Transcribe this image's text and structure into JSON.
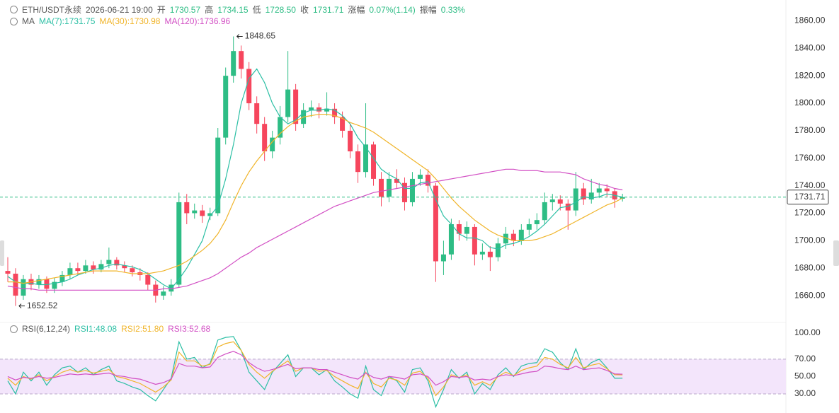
{
  "header": {
    "symbol": "ETH/USDT永续",
    "time": "2026-06-21 19:00",
    "fields": [
      {
        "label": "开",
        "value": "1730.57"
      },
      {
        "label": "高",
        "value": "1734.15"
      },
      {
        "label": "低",
        "value": "1728.50"
      },
      {
        "label": "收",
        "value": "1731.71"
      },
      {
        "label": "涨幅",
        "value": "0.07%(1.14)"
      },
      {
        "label": "振幅",
        "value": "0.33%"
      }
    ]
  },
  "chart_data": [
    {
      "type": "candlestick",
      "indicator": "MA",
      "up_color": "#2ebd85",
      "down_color": "#f6465d",
      "last_price_line": true,
      "candles": [
        [
          1678,
          1688,
          1670,
          1676
        ],
        [
          1676,
          1680,
          1652.52,
          1660
        ],
        [
          1660,
          1675,
          1657,
          1672
        ],
        [
          1672,
          1676,
          1664,
          1668
        ],
        [
          1668,
          1675,
          1665,
          1672
        ],
        [
          1672,
          1674,
          1662,
          1665
        ],
        [
          1665,
          1673,
          1662,
          1670
        ],
        [
          1670,
          1678,
          1667,
          1675
        ],
        [
          1675,
          1684,
          1672,
          1680
        ],
        [
          1680,
          1684,
          1675,
          1678
        ],
        [
          1678,
          1686,
          1676,
          1682
        ],
        [
          1682,
          1685,
          1676,
          1679
        ],
        [
          1679,
          1686,
          1677,
          1683
        ],
        [
          1683,
          1695,
          1680,
          1686
        ],
        [
          1686,
          1688,
          1679,
          1682
        ],
        [
          1682,
          1685,
          1677,
          1680
        ],
        [
          1680,
          1682,
          1674,
          1677
        ],
        [
          1677,
          1680,
          1671,
          1675
        ],
        [
          1675,
          1677,
          1664,
          1668
        ],
        [
          1668,
          1671,
          1655,
          1660
        ],
        [
          1660,
          1667,
          1657,
          1663
        ],
        [
          1663,
          1672,
          1660,
          1668
        ],
        [
          1668,
          1735,
          1666,
          1728
        ],
        [
          1728,
          1734,
          1712,
          1720
        ],
        [
          1720,
          1727,
          1716,
          1722
        ],
        [
          1722,
          1726,
          1713,
          1718
        ],
        [
          1718,
          1724,
          1715,
          1720
        ],
        [
          1720,
          1782,
          1718,
          1775
        ],
        [
          1775,
          1826,
          1770,
          1820
        ],
        [
          1820,
          1848.65,
          1815,
          1838
        ],
        [
          1838,
          1842,
          1818,
          1825
        ],
        [
          1825,
          1830,
          1795,
          1800
        ],
        [
          1800,
          1805,
          1778,
          1785
        ],
        [
          1785,
          1790,
          1758,
          1765
        ],
        [
          1765,
          1780,
          1760,
          1775
        ],
        [
          1775,
          1798,
          1770,
          1790
        ],
        [
          1790,
          1838,
          1786,
          1810
        ],
        [
          1810,
          1814,
          1780,
          1785
        ],
        [
          1785,
          1800,
          1782,
          1795
        ],
        [
          1795,
          1802,
          1790,
          1797
        ],
        [
          1797,
          1800,
          1789,
          1794
        ],
        [
          1794,
          1808,
          1791,
          1796
        ],
        [
          1796,
          1800,
          1785,
          1790
        ],
        [
          1790,
          1794,
          1775,
          1780
        ],
        [
          1780,
          1785,
          1760,
          1765
        ],
        [
          1765,
          1770,
          1742,
          1750
        ],
        [
          1750,
          1800,
          1746,
          1770
        ],
        [
          1770,
          1772,
          1740,
          1745
        ],
        [
          1745,
          1750,
          1725,
          1732
        ],
        [
          1732,
          1750,
          1728,
          1745
        ],
        [
          1745,
          1752,
          1738,
          1742
        ],
        [
          1742,
          1746,
          1722,
          1728
        ],
        [
          1728,
          1750,
          1725,
          1745
        ],
        [
          1745,
          1752,
          1740,
          1748
        ],
        [
          1748,
          1752,
          1735,
          1740
        ],
        [
          1740,
          1742,
          1670,
          1685
        ],
        [
          1685,
          1700,
          1675,
          1690
        ],
        [
          1690,
          1716,
          1686,
          1712
        ],
        [
          1712,
          1715,
          1700,
          1705
        ],
        [
          1705,
          1714,
          1700,
          1710
        ],
        [
          1710,
          1712,
          1682,
          1690
        ],
        [
          1690,
          1698,
          1686,
          1692
        ],
        [
          1692,
          1696,
          1678,
          1688
        ],
        [
          1688,
          1702,
          1685,
          1698
        ],
        [
          1698,
          1710,
          1694,
          1705
        ],
        [
          1705,
          1708,
          1696,
          1700
        ],
        [
          1700,
          1712,
          1697,
          1708
        ],
        [
          1708,
          1716,
          1704,
          1712
        ],
        [
          1712,
          1720,
          1708,
          1715
        ],
        [
          1715,
          1735,
          1712,
          1728
        ],
        [
          1728,
          1734,
          1722,
          1730
        ],
        [
          1730,
          1733,
          1722,
          1727
        ],
        [
          1727,
          1730,
          1708,
          1722
        ],
        [
          1722,
          1750,
          1718,
          1738
        ],
        [
          1738,
          1742,
          1726,
          1730
        ],
        [
          1730,
          1745,
          1727,
          1735
        ],
        [
          1735,
          1742,
          1731,
          1738
        ],
        [
          1738,
          1741,
          1732,
          1736
        ],
        [
          1736,
          1738,
          1724,
          1730
        ],
        [
          1730.57,
          1734.15,
          1728.5,
          1731.71
        ]
      ],
      "series": [
        {
          "name": "MA(7):1731.75",
          "color": "#2bbfa4",
          "values": [
            1674,
            1670,
            1669,
            1669,
            1668,
            1668,
            1669,
            1670,
            1672,
            1675,
            1677,
            1679,
            1680,
            1682,
            1683,
            1682,
            1681,
            1679,
            1676,
            1672,
            1668,
            1665,
            1672,
            1680,
            1690,
            1700,
            1718,
            1725,
            1745,
            1770,
            1800,
            1818,
            1825,
            1815,
            1800,
            1790,
            1785,
            1788,
            1793,
            1795,
            1795,
            1796,
            1795,
            1791,
            1785,
            1775,
            1768,
            1760,
            1752,
            1748,
            1745,
            1738,
            1738,
            1742,
            1743,
            1730,
            1718,
            1712,
            1705,
            1702,
            1702,
            1700,
            1695,
            1694,
            1697,
            1698,
            1700,
            1703,
            1707,
            1712,
            1718,
            1724,
            1725,
            1728,
            1732,
            1731,
            1732,
            1734,
            1733,
            1731.75
          ]
        },
        {
          "name": "MA(30):1730.98",
          "color": "#f0b429",
          "values": [
            1670,
            1670,
            1669,
            1670,
            1671,
            1672,
            1673,
            1674,
            1675,
            1676,
            1677,
            1678,
            1678,
            1678,
            1678,
            1677,
            1676,
            1676,
            1676,
            1677,
            1678,
            1680,
            1682,
            1685,
            1689,
            1693,
            1698,
            1705,
            1715,
            1728,
            1740,
            1750,
            1758,
            1765,
            1772,
            1778,
            1783,
            1787,
            1790,
            1791,
            1792,
            1792,
            1791,
            1789,
            1786,
            1784,
            1782,
            1779,
            1775,
            1771,
            1767,
            1763,
            1759,
            1755,
            1751,
            1745,
            1738,
            1731,
            1725,
            1720,
            1715,
            1711,
            1707,
            1704,
            1702,
            1700,
            1700,
            1700,
            1701,
            1703,
            1705,
            1708,
            1711,
            1714,
            1717,
            1720,
            1723,
            1726,
            1728,
            1730.98
          ]
        },
        {
          "name": "MA(120):1736.96",
          "color": "#d24fc4",
          "values": [
            1667,
            1666,
            1665,
            1665,
            1664,
            1664,
            1664,
            1664,
            1664,
            1664,
            1664,
            1664,
            1664,
            1664,
            1664,
            1664,
            1664,
            1664,
            1664,
            1664,
            1665,
            1665,
            1666,
            1667,
            1669,
            1671,
            1673,
            1676,
            1680,
            1684,
            1688,
            1691,
            1695,
            1698,
            1701,
            1704,
            1707,
            1710,
            1713,
            1716,
            1719,
            1722,
            1725,
            1727,
            1729,
            1731,
            1733,
            1735,
            1736,
            1737,
            1738,
            1739,
            1740,
            1741,
            1742,
            1743,
            1744,
            1745,
            1746,
            1747,
            1748,
            1749,
            1750,
            1751,
            1752,
            1752,
            1751,
            1751,
            1751,
            1750,
            1750,
            1750,
            1749,
            1748,
            1745,
            1743,
            1741,
            1740,
            1738,
            1736.96
          ]
        }
      ],
      "ylim": [
        1641,
        1870
      ],
      "xlim": [
        -1,
        100
      ],
      "yticks": [
        {
          "value": 1660,
          "label": "1660.00"
        },
        {
          "value": 1680,
          "label": "1680.00"
        },
        {
          "value": 1700,
          "label": "1700.00"
        },
        {
          "value": 1720,
          "label": "1720.00"
        },
        {
          "value": 1740,
          "label": "1740.00"
        },
        {
          "value": 1760,
          "label": "1760.00"
        },
        {
          "value": 1780,
          "label": "1780.00"
        },
        {
          "value": 1800,
          "label": "1800.00"
        },
        {
          "value": 1820,
          "label": "1820.00"
        },
        {
          "value": 1840,
          "label": "1840.00"
        },
        {
          "value": 1860,
          "label": "1860.00"
        }
      ]
    },
    {
      "type": "line",
      "title": "RSI(6,12,24)",
      "band": [
        30,
        70
      ],
      "band_color": "#f3e5fb",
      "ylim": [
        8,
        100
      ],
      "xlim": [
        -1,
        100
      ],
      "yticks": [
        {
          "value": 30,
          "label": "30.00"
        },
        {
          "value": 50,
          "label": "50.00"
        },
        {
          "value": 70,
          "label": "70.00"
        },
        {
          "value": 100,
          "label": "100.00"
        }
      ],
      "series": [
        {
          "name": "RSI1:48.08",
          "color": "#2bbfa4",
          "values": [
            45,
            30,
            55,
            45,
            55,
            40,
            52,
            60,
            62,
            55,
            60,
            52,
            58,
            62,
            45,
            42,
            38,
            35,
            28,
            22,
            35,
            48,
            90,
            70,
            72,
            60,
            65,
            92,
            95,
            96,
            80,
            55,
            45,
            35,
            55,
            65,
            75,
            50,
            60,
            60,
            52,
            58,
            45,
            38,
            30,
            25,
            62,
            35,
            28,
            50,
            45,
            32,
            58,
            60,
            45,
            15,
            35,
            58,
            48,
            55,
            30,
            42,
            35,
            52,
            60,
            50,
            62,
            65,
            66,
            82,
            78,
            66,
            58,
            82,
            58,
            66,
            70,
            60,
            48,
            48.08
          ]
        },
        {
          "name": "RSI2:51.80",
          "color": "#f0b429",
          "values": [
            48,
            40,
            50,
            47,
            52,
            45,
            50,
            55,
            58,
            55,
            57,
            54,
            56,
            58,
            50,
            48,
            45,
            42,
            37,
            32,
            38,
            46,
            78,
            68,
            68,
            62,
            64,
            84,
            88,
            90,
            80,
            64,
            55,
            48,
            56,
            62,
            68,
            56,
            60,
            60,
            56,
            57,
            50,
            45,
            40,
            36,
            55,
            42,
            38,
            48,
            46,
            40,
            54,
            56,
            48,
            28,
            38,
            52,
            49,
            52,
            40,
            44,
            40,
            50,
            55,
            51,
            57,
            60,
            62,
            72,
            70,
            64,
            60,
            72,
            60,
            63,
            65,
            59,
            52,
            51.8
          ]
        },
        {
          "name": "RSI3:52.68",
          "color": "#d24fc4",
          "values": [
            50,
            46,
            49,
            48,
            50,
            48,
            49,
            51,
            53,
            52,
            53,
            52,
            53,
            54,
            51,
            50,
            48,
            47,
            44,
            41,
            43,
            47,
            65,
            62,
            62,
            60,
            61,
            72,
            76,
            79,
            75,
            66,
            60,
            56,
            58,
            61,
            64,
            59,
            60,
            60,
            58,
            58,
            55,
            52,
            49,
            47,
            54,
            49,
            47,
            50,
            49,
            47,
            52,
            53,
            50,
            40,
            44,
            50,
            49,
            50,
            46,
            47,
            46,
            50,
            52,
            51,
            53,
            55,
            56,
            62,
            61,
            59,
            58,
            62,
            58,
            59,
            60,
            57,
            53,
            52.68
          ]
        }
      ]
    }
  ]
}
